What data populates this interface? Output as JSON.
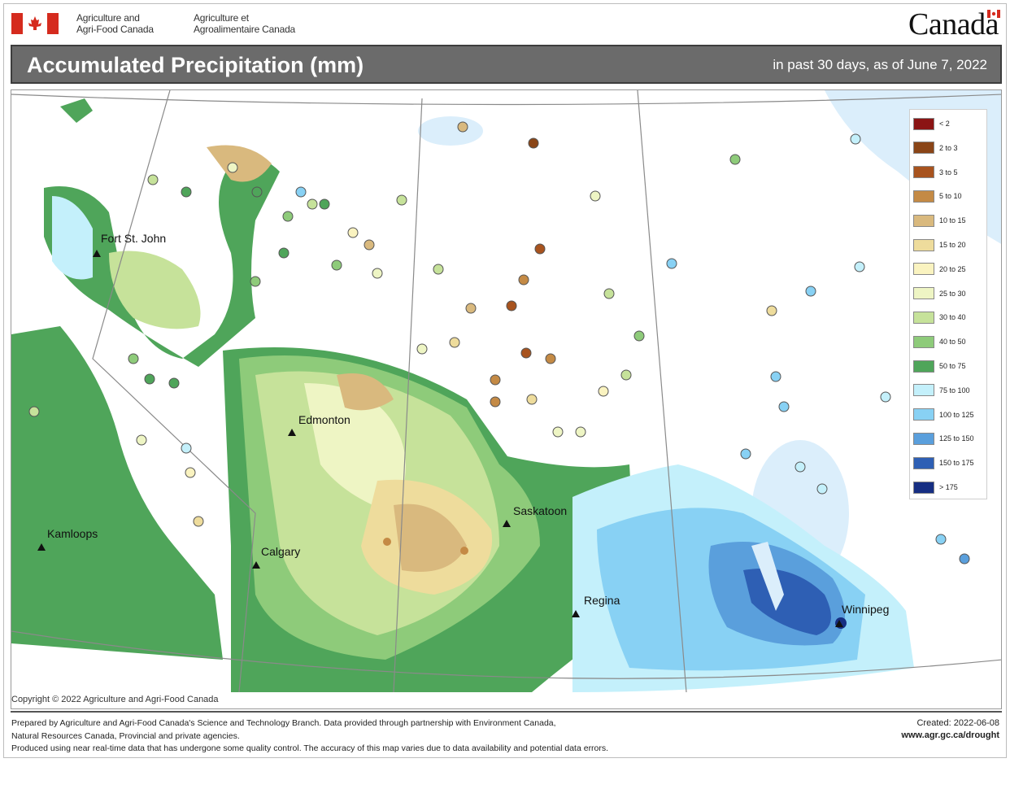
{
  "header": {
    "dept_en": [
      "Agriculture and",
      "Agri-Food Canada"
    ],
    "dept_fr": [
      "Agriculture et",
      "Agroalimentaire Canada"
    ],
    "wordmark": "Canada",
    "title": "Accumulated Precipitation (mm)",
    "subtitle": "in past 30 days, as of June 7, 2022"
  },
  "cities": [
    "Fort St. John",
    "Edmonton",
    "Saskatoon",
    "Kamloops",
    "Calgary",
    "Regina",
    "Winnipeg"
  ],
  "legend": [
    {
      "label": "< 2",
      "color": "#8b1414"
    },
    {
      "label": "2 to 3",
      "color": "#8a4517"
    },
    {
      "label": "3 to 5",
      "color": "#a8531e"
    },
    {
      "label": "5 to 10",
      "color": "#c48a45"
    },
    {
      "label": "10 to 15",
      "color": "#d9b97e"
    },
    {
      "label": "15 to 20",
      "color": "#eedc9c"
    },
    {
      "label": "20 to 25",
      "color": "#faf3c0"
    },
    {
      "label": "25 to 30",
      "color": "#eef5c4"
    },
    {
      "label": "30 to 40",
      "color": "#c6e29a"
    },
    {
      "label": "40 to 50",
      "color": "#8ecb7a"
    },
    {
      "label": "50 to 75",
      "color": "#4fa55a"
    },
    {
      "label": "75 to 100",
      "color": "#c4f0fb"
    },
    {
      "label": "100 to 125",
      "color": "#88d1f4"
    },
    {
      "label": "125 to 150",
      "color": "#5a9fdc"
    },
    {
      "label": "150 to 175",
      "color": "#2e5fb4"
    },
    {
      "label": "> 175",
      "color": "#162e82"
    }
  ],
  "copyright": "Copyright © 2022 Agriculture and Agri-Food Canada",
  "footer": {
    "note1": "Prepared by Agriculture and Agri-Food Canada's Science and Technology Branch. Data provided through partnership with Environment Canada,",
    "note2": "Natural Resources Canada, Provincial and private agencies.",
    "note3": "Produced using near real-time data that has undergone some quality control. The accuracy of this map varies due to data availability and potential data errors.",
    "created": "Created: 2022-06-08",
    "site": "www.agr.gc.ca/drought"
  },
  "colors": {
    "title_bar": "#6b6b6b",
    "flag_red": "#d52b1e",
    "water": "#dbeefb"
  }
}
